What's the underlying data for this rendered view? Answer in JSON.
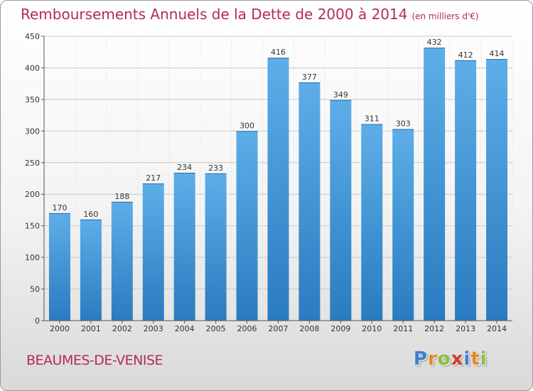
{
  "header": {
    "title": "Remboursements Annuels de la Dette de 2000 à 2014",
    "subtitle": "(en milliers d'€)"
  },
  "footer": {
    "commune": "BEAUMES-DE-VENISE",
    "brand": {
      "letters": [
        "P",
        "r",
        "o",
        "x",
        "i",
        "t",
        "i"
      ]
    }
  },
  "colors": {
    "title": "#b5285f",
    "bar_top": "#5daee8",
    "bar_bottom": "#2a7bc0",
    "grid": "#c8c8c8",
    "brand_letters": [
      "#3b7fcf",
      "#e5891c",
      "#8cbf3f",
      "#d8392b",
      "#3b7fcf",
      "#e5891c",
      "#8cbf3f"
    ]
  },
  "chart_data": {
    "type": "bar",
    "title": "Remboursements Annuels de la Dette de 2000 à 2014",
    "subtitle": "(en milliers d'€)",
    "xlabel": "",
    "ylabel": "",
    "categories": [
      "2000",
      "2001",
      "2002",
      "2003",
      "2004",
      "2005",
      "2006",
      "2007",
      "2008",
      "2009",
      "2010",
      "2011",
      "2012",
      "2013",
      "2014"
    ],
    "values": [
      170,
      160,
      188,
      217,
      234,
      233,
      300,
      416,
      377,
      349,
      311,
      303,
      432,
      412,
      414
    ],
    "ylim": [
      0,
      450
    ],
    "yticks": [
      0,
      50,
      100,
      150,
      200,
      250,
      300,
      350,
      400,
      450
    ],
    "grid": true,
    "data_labels": true
  }
}
